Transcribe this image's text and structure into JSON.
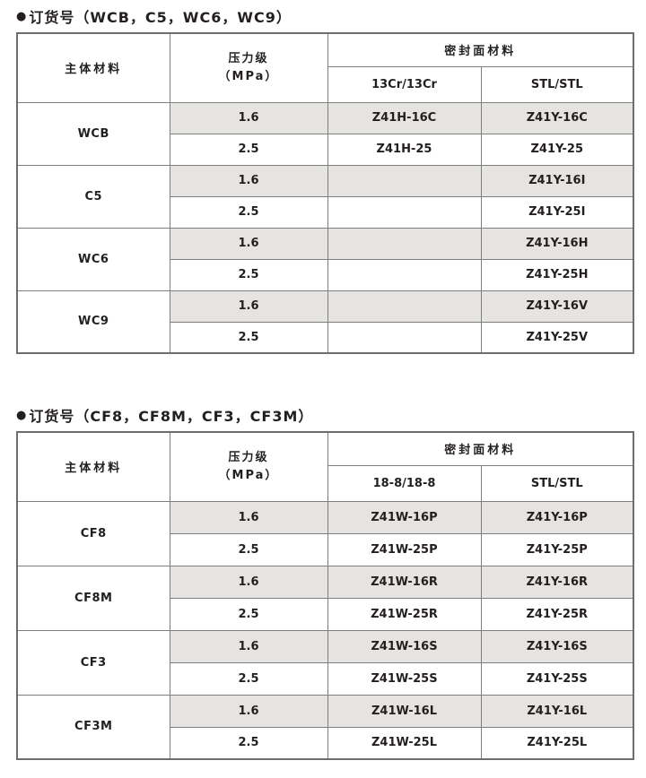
{
  "colors": {
    "row_shade": "#e5e4e1",
    "inner_border": "#7e7e7e",
    "outer_border": "#6e6e6e",
    "text": "#231f20"
  },
  "tables": [
    {
      "bullet": "●",
      "title": "订货号（WCB，C5，WC6，WC9）",
      "header": {
        "material": "主体材料",
        "pressure_line1": "压力级",
        "pressure_line2": "（MPa）",
        "seal_face": "密封面材料",
        "seal_sub": [
          "13Cr/13Cr",
          "STL/STL"
        ]
      },
      "groups": [
        {
          "material": "WCB",
          "rows": [
            {
              "pressure": "1.6",
              "codes": [
                "Z41H-16C",
                "Z41Y-16C"
              ]
            },
            {
              "pressure": "2.5",
              "codes": [
                "Z41H-25",
                "Z41Y-25"
              ]
            }
          ]
        },
        {
          "material": "C5",
          "rows": [
            {
              "pressure": "1.6",
              "codes": [
                "",
                "Z41Y-16I"
              ]
            },
            {
              "pressure": "2.5",
              "codes": [
                "",
                "Z41Y-25I"
              ]
            }
          ]
        },
        {
          "material": "WC6",
          "rows": [
            {
              "pressure": "1.6",
              "codes": [
                "",
                "Z41Y-16H"
              ]
            },
            {
              "pressure": "2.5",
              "codes": [
                "",
                "Z41Y-25H"
              ]
            }
          ]
        },
        {
          "material": "WC9",
          "rows": [
            {
              "pressure": "1.6",
              "codes": [
                "",
                "Z41Y-16V"
              ]
            },
            {
              "pressure": "2.5",
              "codes": [
                "",
                "Z41Y-25V"
              ]
            }
          ]
        }
      ]
    },
    {
      "bullet": "●",
      "title": "订货号（CF8，CF8M，CF3，CF3M）",
      "header": {
        "material": "主体材料",
        "pressure_line1": "压力级",
        "pressure_line2": "（MPa）",
        "seal_face": "密封面材料",
        "seal_sub": [
          "18-8/18-8",
          "STL/STL"
        ]
      },
      "groups": [
        {
          "material": "CF8",
          "rows": [
            {
              "pressure": "1.6",
              "codes": [
                "Z41W-16P",
                "Z41Y-16P"
              ]
            },
            {
              "pressure": "2.5",
              "codes": [
                "Z41W-25P",
                "Z41Y-25P"
              ]
            }
          ]
        },
        {
          "material": "CF8M",
          "rows": [
            {
              "pressure": "1.6",
              "codes": [
                "Z41W-16R",
                "Z41Y-16R"
              ]
            },
            {
              "pressure": "2.5",
              "codes": [
                "Z41W-25R",
                "Z41Y-25R"
              ]
            }
          ]
        },
        {
          "material": "CF3",
          "rows": [
            {
              "pressure": "1.6",
              "codes": [
                "Z41W-16S",
                "Z41Y-16S"
              ]
            },
            {
              "pressure": "2.5",
              "codes": [
                "Z41W-25S",
                "Z41Y-25S"
              ]
            }
          ]
        },
        {
          "material": "CF3M",
          "rows": [
            {
              "pressure": "1.6",
              "codes": [
                "Z41W-16L",
                "Z41Y-16L"
              ]
            },
            {
              "pressure": "2.5",
              "codes": [
                "Z41W-25L",
                "Z41Y-25L"
              ]
            }
          ]
        }
      ]
    }
  ]
}
